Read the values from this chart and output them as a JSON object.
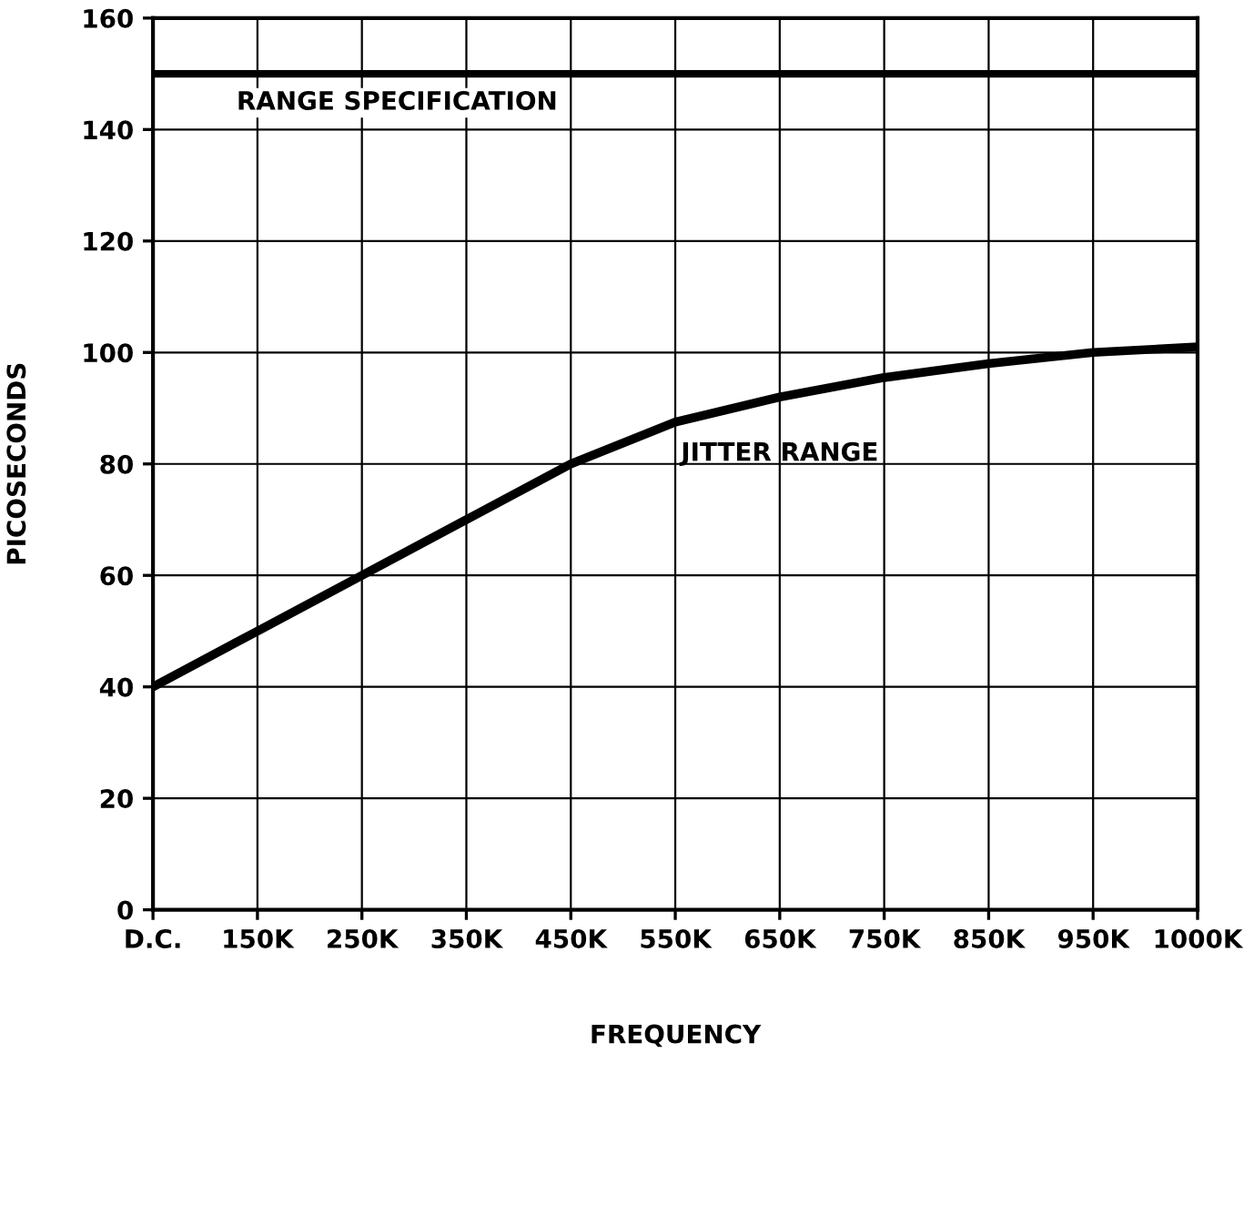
{
  "chart_data": {
    "type": "line",
    "xlabel": "FREQUENCY",
    "ylabel": "PICOSECONDS",
    "categories": [
      "D.C.",
      "150K",
      "250K",
      "350K",
      "450K",
      "550K",
      "650K",
      "750K",
      "850K",
      "950K",
      "1000K"
    ],
    "series": [
      {
        "name": "JITTER RANGE",
        "color": "#000000",
        "values": [
          40,
          50,
          60,
          70,
          80,
          87.5,
          92,
          95.5,
          98,
          100,
          101
        ]
      }
    ],
    "ylim": [
      0,
      160
    ],
    "yticks": [
      0,
      20,
      40,
      60,
      80,
      100,
      120,
      140,
      160
    ],
    "ref_lines": [
      {
        "axis": "y",
        "value": 150,
        "label": "RANGE SPECIFICATION",
        "color": "#000000",
        "line_style": "solid"
      }
    ],
    "grid": true,
    "legend": false,
    "marker": "none",
    "line_style": "solid"
  }
}
